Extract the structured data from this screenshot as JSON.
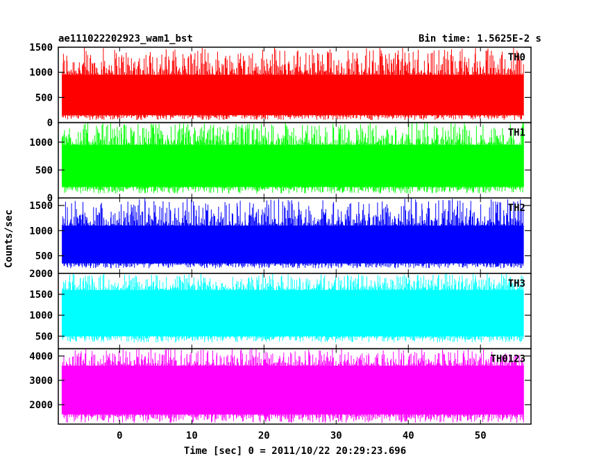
{
  "header": {
    "left_title": "ae111022202923_wam1_bst",
    "right_title": "Bin time: 1.5625E-2 s"
  },
  "chart_data": {
    "type": "line",
    "xlabel": "Time [sec] 0 = 2011/10/22 20:29:23.696",
    "ylabel": "Counts/sec",
    "xlim": [
      -8.5,
      57
    ],
    "x_ticks": [
      0,
      10,
      20,
      30,
      40,
      50
    ],
    "data_x_range": [
      -8,
      56
    ],
    "panels": [
      {
        "name": "TH0",
        "color": "#ff0000",
        "ylim": [
          0,
          1500
        ],
        "y_ticks": [
          0,
          500,
          1000,
          1500
        ],
        "low": 150,
        "high": 950,
        "spike_min": 50,
        "spike_max": 1500
      },
      {
        "name": "TH1",
        "color": "#00ff00",
        "ylim": [
          0,
          1350
        ],
        "y_ticks": [
          0,
          500,
          1000
        ],
        "low": 200,
        "high": 950,
        "spike_min": 80,
        "spike_max": 1350
      },
      {
        "name": "TH2",
        "color": "#0000ff",
        "ylim": [
          150,
          1650
        ],
        "y_ticks": [
          500,
          1000,
          1500
        ],
        "low": 350,
        "high": 1100,
        "spike_min": 250,
        "spike_max": 1650
      },
      {
        "name": "TH3",
        "color": "#00ffff",
        "ylim": [
          200,
          2000
        ],
        "y_ticks": [
          500,
          1000,
          1500,
          2000
        ],
        "low": 500,
        "high": 1600,
        "spike_min": 350,
        "spike_max": 2000
      },
      {
        "name": "TH0123",
        "color": "#ff00ff",
        "ylim": [
          1200,
          4300
        ],
        "y_ticks": [
          2000,
          3000,
          4000
        ],
        "low": 1600,
        "high": 3600,
        "spike_min": 1250,
        "spike_max": 4300
      }
    ]
  }
}
